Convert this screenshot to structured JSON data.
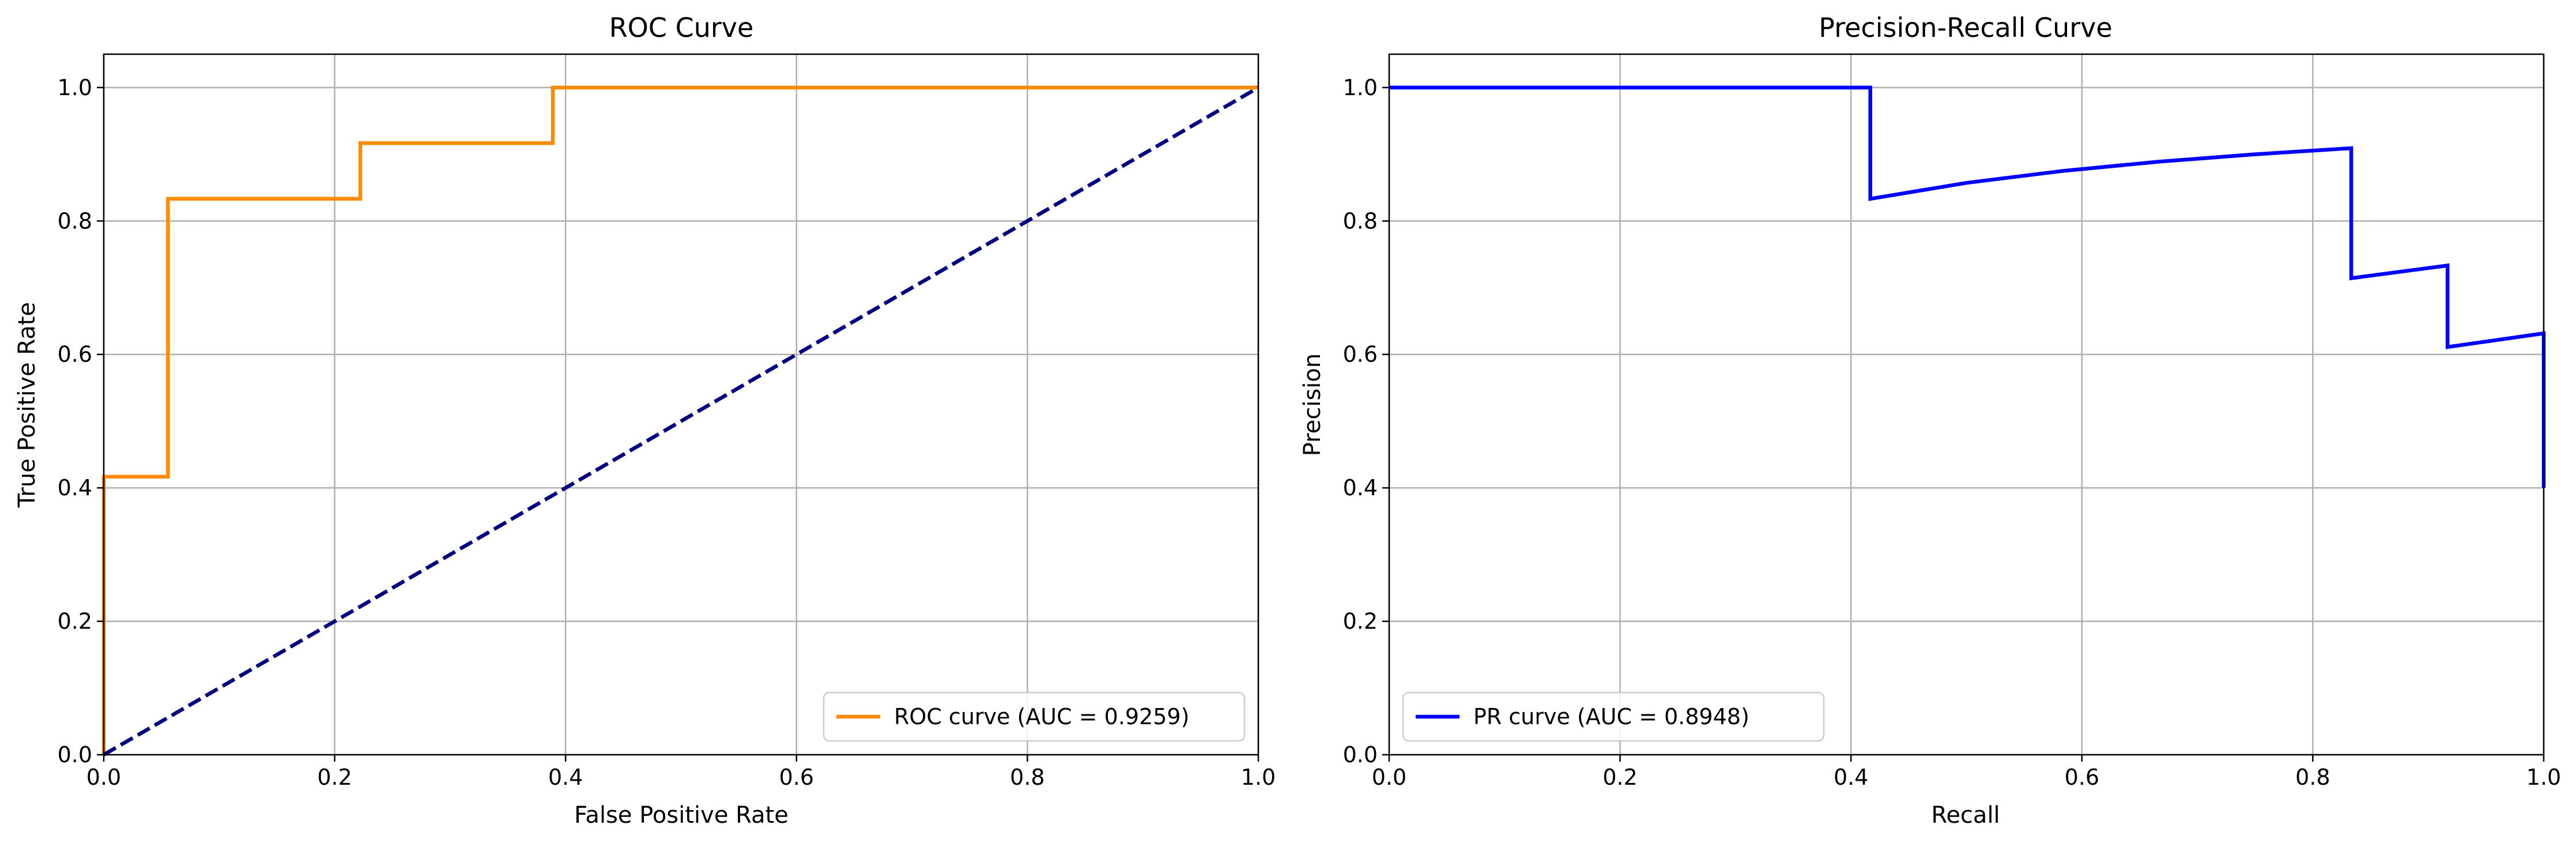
{
  "chart_data": [
    {
      "type": "line",
      "title": "ROC Curve",
      "xlabel": "False Positive Rate",
      "ylabel": "True Positive Rate",
      "xlim": [
        0,
        1
      ],
      "ylim": [
        0,
        1.05
      ],
      "xticks": [
        0,
        0.2,
        0.4,
        0.6,
        0.8,
        1.0
      ],
      "xtick_labels": [
        "0.0",
        "0.2",
        "0.4",
        "0.6",
        "0.8",
        "1.0"
      ],
      "yticks": [
        0,
        0.2,
        0.4,
        0.6,
        0.8,
        1.0
      ],
      "ytick_labels": [
        "0.0",
        "0.2",
        "0.4",
        "0.6",
        "0.8",
        "1.0"
      ],
      "grid": true,
      "legend_position": "lower-right",
      "series": [
        {
          "name": "ROC curve (AUC = 0.9259)",
          "color": "#ff8c00",
          "style": "solid",
          "in_legend": true,
          "x": [
            0,
            0,
            0.0556,
            0.0556,
            0.2222,
            0.2222,
            0.3889,
            0.3889,
            1.0
          ],
          "y": [
            0,
            0.4167,
            0.4167,
            0.8333,
            0.8333,
            0.9167,
            0.9167,
            1.0,
            1.0
          ]
        },
        {
          "color": "#000080",
          "style": "dashed",
          "in_legend": false,
          "x": [
            0,
            1
          ],
          "y": [
            0,
            1
          ]
        }
      ]
    },
    {
      "type": "line",
      "title": "Precision-Recall Curve",
      "xlabel": "Recall",
      "ylabel": "Precision",
      "xlim": [
        0,
        1
      ],
      "ylim": [
        0,
        1.05
      ],
      "xticks": [
        0,
        0.2,
        0.4,
        0.6,
        0.8,
        1.0
      ],
      "xtick_labels": [
        "0.0",
        "0.2",
        "0.4",
        "0.6",
        "0.8",
        "1.0"
      ],
      "yticks": [
        0,
        0.2,
        0.4,
        0.6,
        0.8,
        1.0
      ],
      "ytick_labels": [
        "0.0",
        "0.2",
        "0.4",
        "0.6",
        "0.8",
        "1.0"
      ],
      "grid": true,
      "legend_position": "lower-left",
      "series": [
        {
          "name": "PR curve (AUC = 0.8948)",
          "color": "#0000ff",
          "style": "solid",
          "in_legend": true,
          "x": [
            0,
            0.4167,
            0.4167,
            0.5,
            0.5833,
            0.6667,
            0.75,
            0.8333,
            0.8333,
            0.9167,
            0.9167,
            1.0,
            1.0
          ],
          "y": [
            1.0,
            1.0,
            0.8333,
            0.8571,
            0.875,
            0.8889,
            0.9,
            0.9091,
            0.7143,
            0.7333,
            0.6111,
            0.6316,
            0.4
          ]
        }
      ]
    }
  ]
}
